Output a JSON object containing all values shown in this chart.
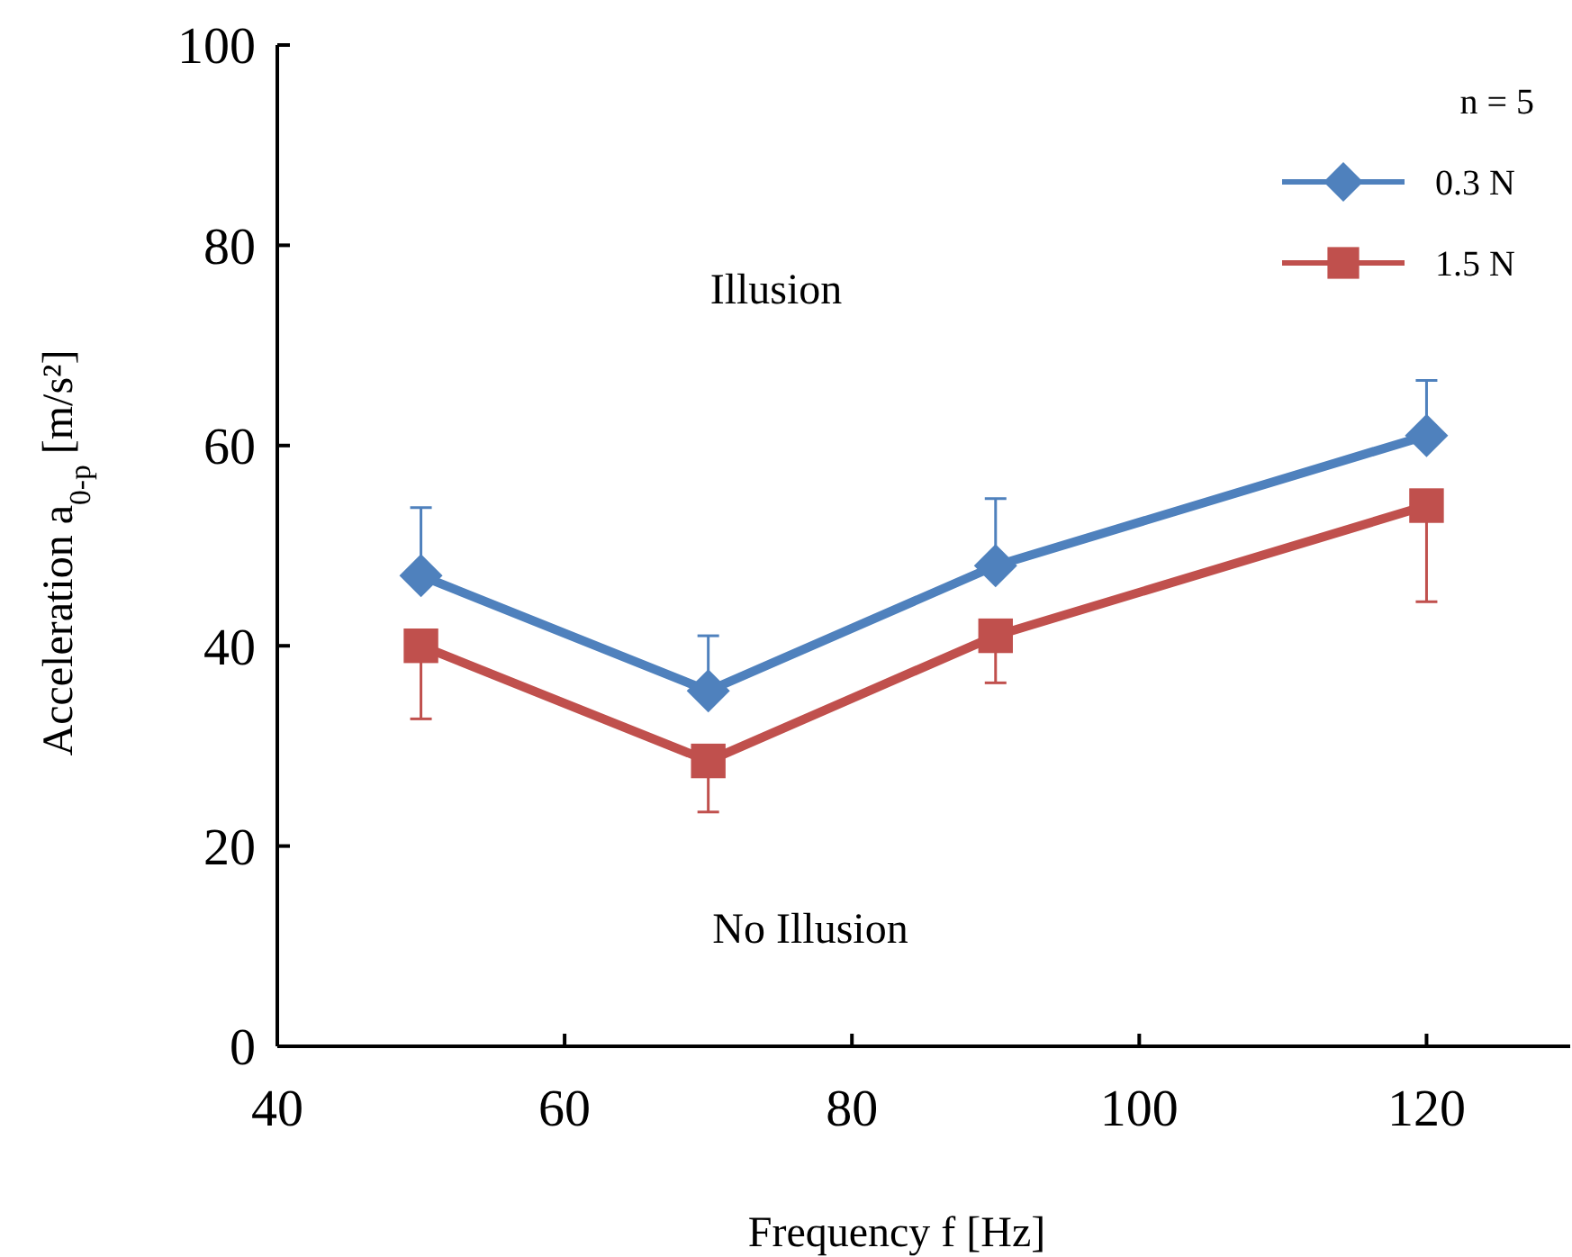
{
  "chart_data": {
    "type": "line",
    "xlabel": "Frequency  f [Hz]",
    "ylabel": "Acceleration  a$_{0-p}$ [m/s²]",
    "x": [
      50,
      70,
      90,
      120
    ],
    "series": [
      {
        "name": "0.3 N",
        "color": "#4f81bd",
        "values": [
          47,
          35.5,
          48,
          61
        ],
        "errors": [
          [
            47,
            53.8
          ],
          [
            35.5,
            41
          ],
          [
            48,
            54.7
          ],
          [
            61,
            66.5
          ]
        ],
        "marker": "diamond"
      },
      {
        "name": "1.5 N",
        "color": "#c0504d",
        "values": [
          40,
          28.5,
          41,
          54
        ],
        "errors": [
          [
            32.7,
            40
          ],
          [
            23.4,
            28.5
          ],
          [
            36.3,
            41
          ],
          [
            44.4,
            54
          ]
        ],
        "marker": "square"
      }
    ],
    "xlim": [
      40,
      130
    ],
    "xticks": [
      40,
      60,
      80,
      100,
      120
    ],
    "ylim": [
      0,
      100
    ],
    "yticks": [
      0,
      20,
      40,
      60,
      80,
      100
    ],
    "grid": false,
    "legend": "top right",
    "legend_title": "n = 5",
    "line_style": "solid",
    "annotations": [
      "Illusion",
      "No Illusion"
    ]
  }
}
